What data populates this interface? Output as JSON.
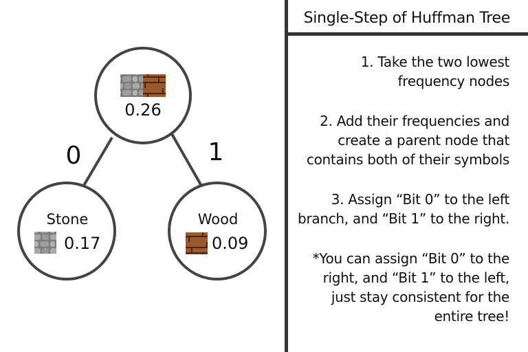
{
  "panel": {
    "title": "Single-Step of Huffman Tree",
    "steps": [
      "1. Take the two lowest frequency nodes",
      "2. Add their frequencies and create a parent node that contains both of their symbols",
      "3. Assign “Bit 0” to the left branch, and “Bit 1” to the right.",
      "*You can assign “Bit 0” to the right, and “Bit 1” to the left, just stay consistent for the entire tree!"
    ]
  },
  "tree": {
    "parent": {
      "value": "0.26",
      "icons": [
        "stone-texture",
        "wood-texture"
      ]
    },
    "left_child": {
      "label": "Stone",
      "value": "0.17",
      "icon": "stone-texture"
    },
    "right_child": {
      "label": "Wood",
      "value": "0.09",
      "icon": "wood-texture"
    },
    "left_edge_bit": "0",
    "right_edge_bit": "1"
  },
  "colors": {
    "stroke": "#444444",
    "stone": "#8c8c8c",
    "wood": "#9a5a2e"
  }
}
